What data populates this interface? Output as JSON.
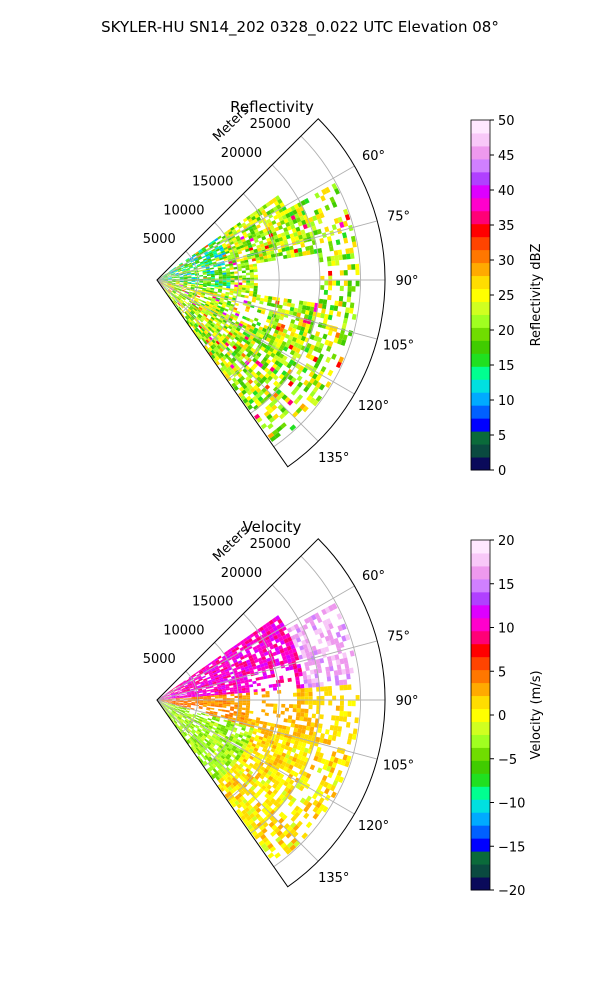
{
  "figure": {
    "suptitle": "SKYLER-HU  SN14_202  0328_0.022 UTC Elevation 08°"
  },
  "chart_data": [
    {
      "type": "heatmap",
      "title": "Reflectivity",
      "projection": "polar-sector",
      "radial_axis_label": "Meters",
      "radial_ticks": [
        5000,
        10000,
        15000,
        20000,
        25000
      ],
      "radial_tick_labels": [
        "5000",
        "10000",
        "15000",
        "20000",
        "25000"
      ],
      "rlim": [
        0,
        28000
      ],
      "azimuth_ticks": [
        60,
        75,
        90,
        105,
        120,
        135
      ],
      "azimuth_tick_labels": [
        "60°",
        "75°",
        "90°",
        "105°",
        "120°",
        "135°"
      ],
      "azimuth_range": [
        45,
        145
      ],
      "grid": true,
      "colorbar": {
        "label": "Reflectivity dBZ",
        "range": [
          0,
          50
        ],
        "ticks": [
          0,
          5,
          10,
          15,
          20,
          25,
          30,
          35,
          40,
          45,
          50
        ],
        "tick_labels": [
          "0",
          "5",
          "10",
          "15",
          "20",
          "25",
          "30",
          "35",
          "40",
          "45",
          "50"
        ],
        "colors": [
          "#0a0a5a",
          "#0a4a40",
          "#0a6a3a",
          "#0000ff",
          "#0060ff",
          "#00aaff",
          "#00e0e0",
          "#00ff90",
          "#20e020",
          "#40cc00",
          "#70dd00",
          "#a0ff20",
          "#d0ff20",
          "#ffff00",
          "#ffdd00",
          "#ffaa00",
          "#ff7700",
          "#ff4400",
          "#ff0000",
          "#ff0077",
          "#ff00cc",
          "#dd00ff",
          "#b040ff",
          "#d080ff",
          "#ee99ee",
          "#f8c8f8",
          "#ffe8ff"
        ]
      }
    },
    {
      "type": "heatmap",
      "title": "Velocity",
      "projection": "polar-sector",
      "radial_axis_label": "Meters",
      "radial_ticks": [
        5000,
        10000,
        15000,
        20000,
        25000
      ],
      "radial_tick_labels": [
        "5000",
        "10000",
        "15000",
        "20000",
        "25000"
      ],
      "rlim": [
        0,
        28000
      ],
      "azimuth_ticks": [
        60,
        75,
        90,
        105,
        120,
        135
      ],
      "azimuth_tick_labels": [
        "60°",
        "75°",
        "90°",
        "105°",
        "120°",
        "135°"
      ],
      "azimuth_range": [
        45,
        145
      ],
      "grid": true,
      "colorbar": {
        "label": "Velocity (m/s)",
        "range": [
          -20,
          20
        ],
        "ticks": [
          -20,
          -15,
          -10,
          -5,
          0,
          5,
          10,
          15,
          20
        ],
        "tick_labels": [
          "−20",
          "−15",
          "−10",
          "−5",
          "0",
          "5",
          "10",
          "15",
          "20"
        ],
        "colors": [
          "#0a0a5a",
          "#0a4a40",
          "#0a6a3a",
          "#0000ff",
          "#0060ff",
          "#00aaff",
          "#00e0e0",
          "#00ff90",
          "#20e020",
          "#40cc00",
          "#70dd00",
          "#a0ff20",
          "#d0ff20",
          "#ffff00",
          "#ffdd00",
          "#ffaa00",
          "#ff7700",
          "#ff4400",
          "#ff0000",
          "#ff0077",
          "#ff00cc",
          "#dd00ff",
          "#b040ff",
          "#d080ff",
          "#ee99ee",
          "#f8c8f8",
          "#ffe8ff"
        ]
      }
    }
  ]
}
